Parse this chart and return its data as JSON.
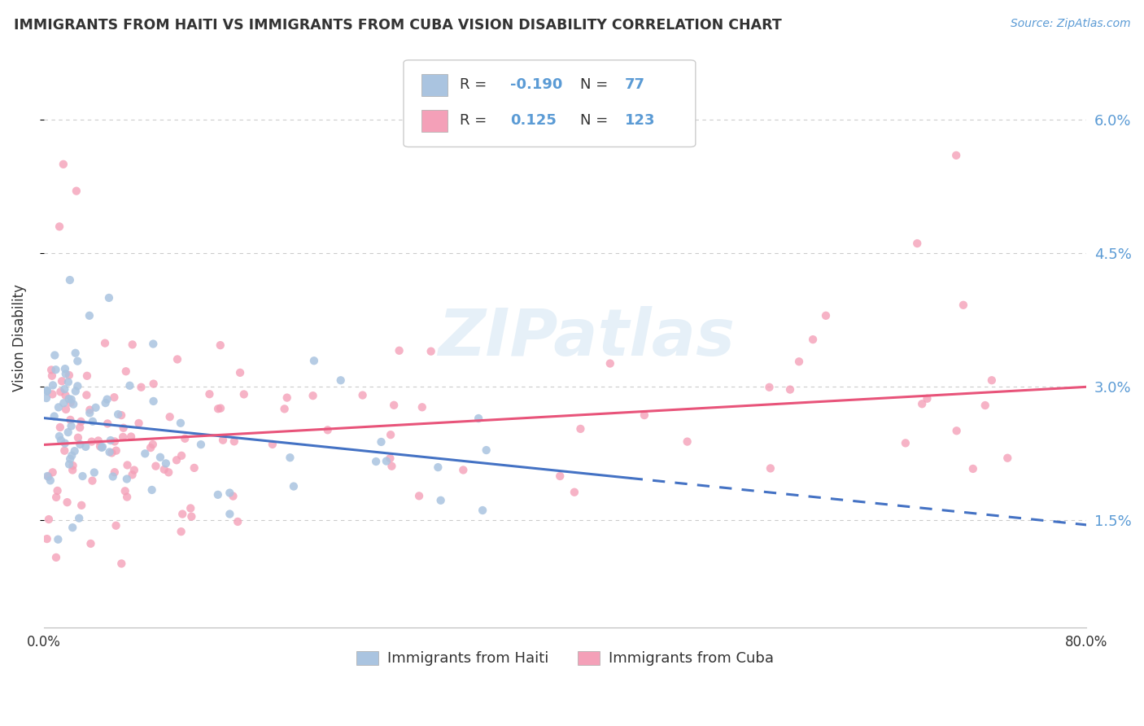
{
  "title": "IMMIGRANTS FROM HAITI VS IMMIGRANTS FROM CUBA VISION DISABILITY CORRELATION CHART",
  "source": "Source: ZipAtlas.com",
  "ylabel": "Vision Disability",
  "haiti_color": "#aac4e0",
  "cuba_color": "#f4a0b8",
  "haiti_line_color": "#4472c4",
  "cuba_line_color": "#e8547a",
  "watermark": "ZIPatlas",
  "xmin": 0.0,
  "xmax": 80.0,
  "ymin": 0.3,
  "ymax": 6.8,
  "ytick_vals": [
    1.5,
    3.0,
    4.5,
    6.0
  ],
  "ytick_labels": [
    "1.5%",
    "3.0%",
    "4.5%",
    "6.0%"
  ],
  "haiti_R": -0.19,
  "haiti_N": 77,
  "cuba_R": 0.125,
  "cuba_N": 123,
  "haiti_label": "Immigrants from Haiti",
  "cuba_label": "Immigrants from Cuba",
  "haiti_line_start_y": 2.65,
  "haiti_line_end_y": 1.45,
  "cuba_line_start_y": 2.35,
  "cuba_line_end_y": 3.0,
  "haiti_solid_end_x": 45.0,
  "background_color": "#ffffff",
  "grid_color": "#cccccc",
  "title_color": "#333333",
  "source_color": "#5b9bd5",
  "ytick_color": "#5b9bd5",
  "legend_R_color": "#5b9bd5",
  "legend_text_color": "#333333"
}
